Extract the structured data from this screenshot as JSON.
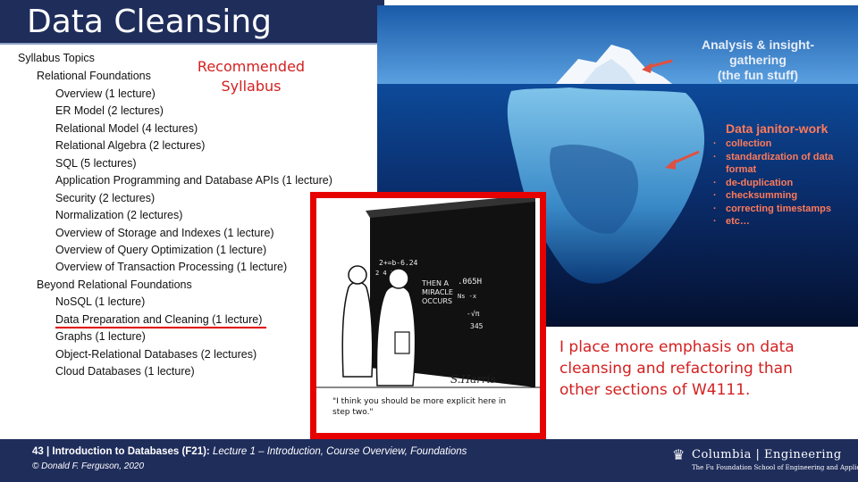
{
  "slide": {
    "title": "Data Cleansing"
  },
  "syllabus": {
    "heading": "Syllabus Topics",
    "recommended_label": "Recommended Syllabus",
    "sections": [
      {
        "title": "Relational Foundations"
      },
      {
        "title": "Beyond Relational Foundations"
      }
    ],
    "items": [
      "Overview (1 lecture)",
      "ER Model (2 lectures)",
      "Relational Model (4 lectures)",
      "Relational Algebra (2 lectures)",
      "SQL (5 lectures)",
      "Application Programming and Database APIs (1 lecture)",
      "Security (2 lectures)",
      "Normalization (2 lectures)",
      "Overview of Storage and Indexes (1 lecture)",
      "Overview of Query Optimization (1 lecture)",
      "Overview of Transaction Processing (1 lecture)",
      "NoSQL (1 lecture)",
      "Data Preparation and Cleaning (1 lecture)",
      "Graphs (1 lecture)",
      "Object-Relational Databases (2 lectures)",
      "Cloud Databases (1 lecture)"
    ]
  },
  "iceberg": {
    "top_label": "Analysis & insight-gathering (the fun stuff)",
    "top_label_lines": [
      "Analysis & insight-",
      "gathering",
      "(the fun stuff)"
    ],
    "janitor_title": "Data janitor-work",
    "janitor_items": [
      "collection",
      "standardization of data",
      "format",
      "de-duplication",
      "checksumming",
      "correcting timestamps",
      "etc…"
    ]
  },
  "cartoon": {
    "caption": "\"I think you should be more explicit here in step two.\"",
    "board_text": "THEN A MIRACLE OCCURS",
    "signature": "S.Harris"
  },
  "emphasis_note": "I place more emphasis on data cleansing and refactoring than other sections of W4111.",
  "footer": {
    "slide_number": "43",
    "separator": " | ",
    "course": "Introduction to Databases (F21):",
    "lecture": " Lecture 1 – Introduction, Course Overview, Foundations",
    "copyright": "© Donald F. Ferguson, 2020",
    "logo_name": "Columbia | Engineering",
    "logo_sub": "The Fu Foundation School of Engineering and Applied Science"
  },
  "colors": {
    "title_bar": "#1f2d5b",
    "accent_red": "#d42020",
    "janitor_orange": "#ff7a5a"
  }
}
